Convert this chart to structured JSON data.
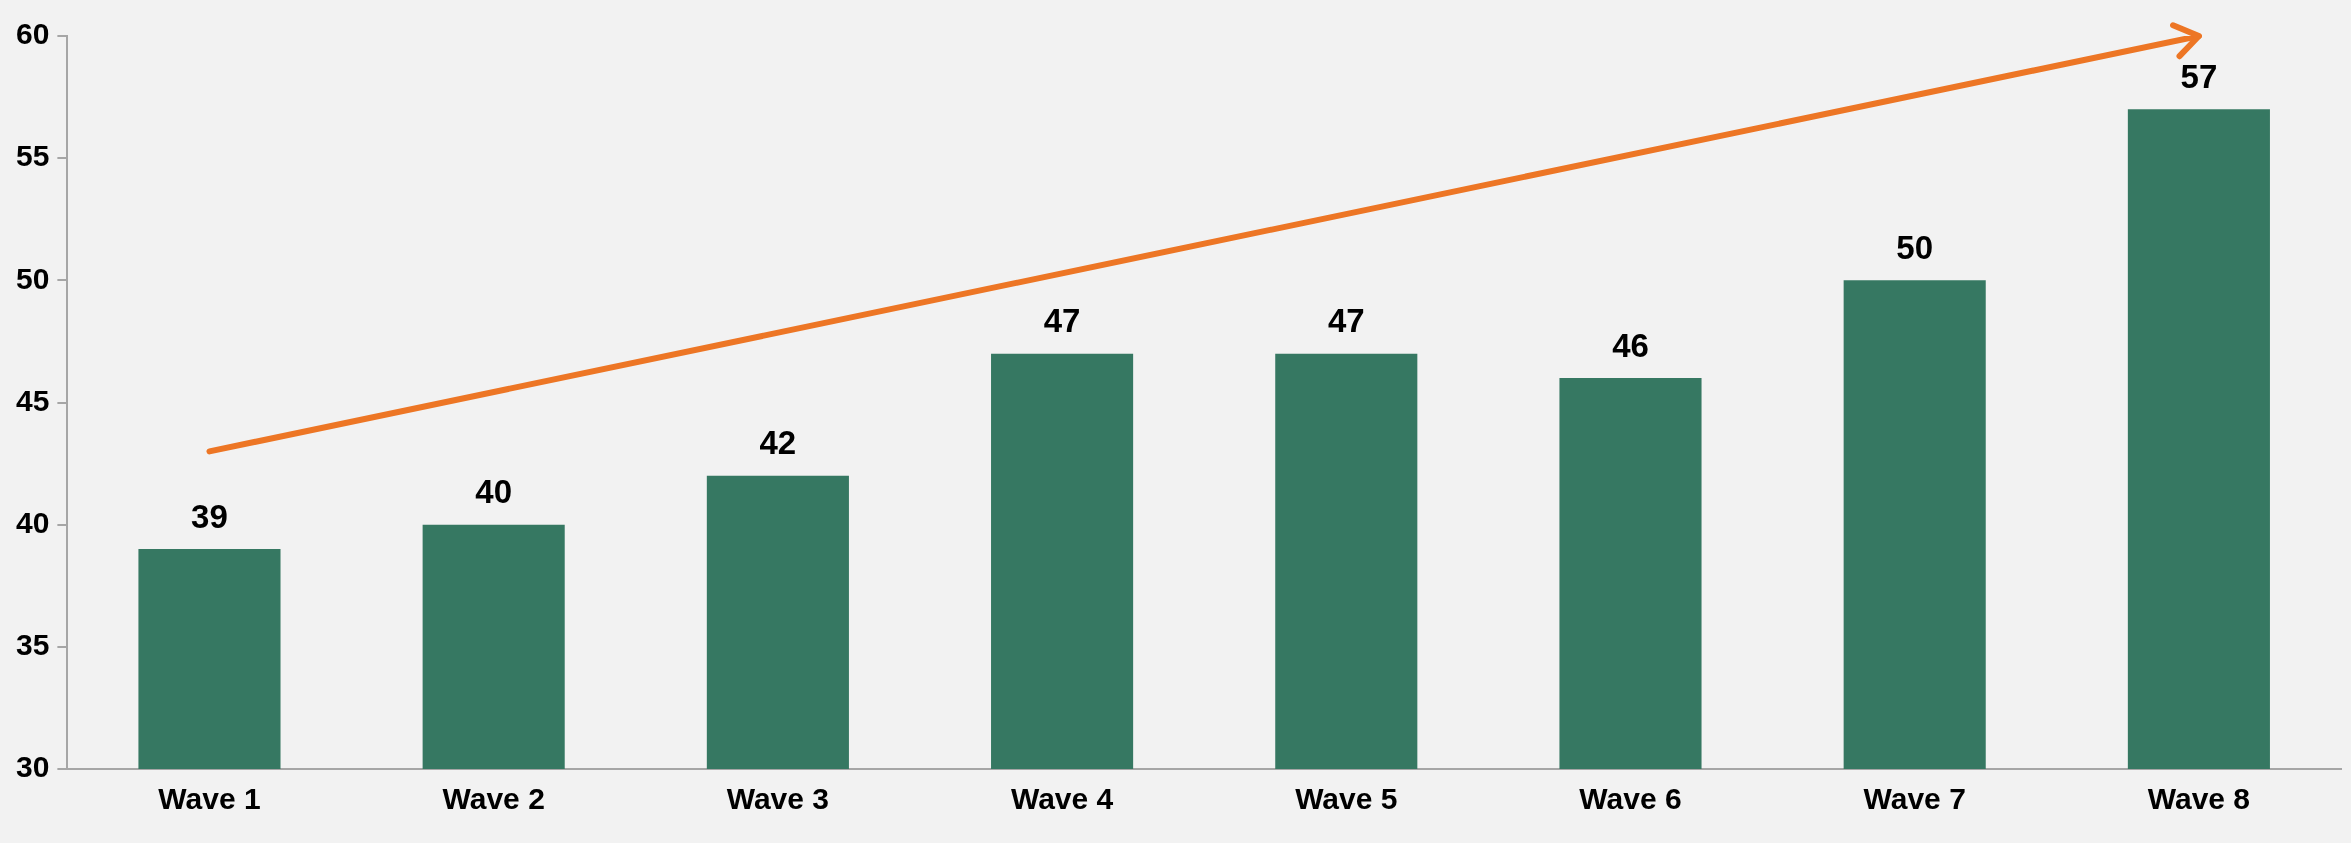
{
  "chart_data": {
    "type": "bar",
    "categories": [
      "Wave 1",
      "Wave 2",
      "Wave 3",
      "Wave 4",
      "Wave 5",
      "Wave 6",
      "Wave 7",
      "Wave 8"
    ],
    "series": [
      {
        "color": "#367862",
        "values": [
          39,
          40,
          42,
          47,
          47,
          46,
          50,
          57
        ],
        "value_labels": [
          "39",
          "40",
          "42",
          "47",
          "47",
          "46",
          "50",
          "57"
        ]
      },
      {
        "type": "line",
        "color": "#ed7625",
        "x": [
          "Wave 1",
          "Wave 8"
        ],
        "values": [
          43,
          60
        ]
      }
    ],
    "ylim": [
      30,
      60
    ],
    "yticks": [
      30,
      35,
      40,
      45,
      50,
      55,
      60
    ],
    "grid": false,
    "legend": false
  }
}
